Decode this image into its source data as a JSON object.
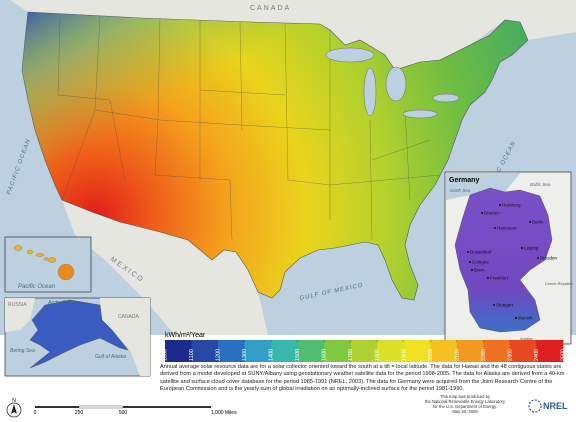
{
  "labels": {
    "pacific": "PACIFIC OCEAN",
    "atlantic": "ATLANTIC OCEAN",
    "gulf": "GULF OF MEXICO",
    "mexico": "MEXICO",
    "canada": "CANADA"
  },
  "hawaii": {
    "ocean": "Pacific Ocean"
  },
  "alaska": {
    "russia": "RUSSIA",
    "arctic": "Arctic Ocean",
    "canada": "CANADA",
    "bering": "Bering Sea",
    "gulf": "Gulf of Alaska"
  },
  "germany": {
    "title": "Germany",
    "north_sea": "North Sea",
    "baltic_sea": "Baltic Sea",
    "czech": "Czech Republic",
    "austria": "Austria",
    "cities": [
      "Hamburg",
      "Bremen",
      "Hannover",
      "Berlin",
      "Dusseldorf",
      "Cologne",
      "Bonn",
      "Leipzig",
      "Dresden",
      "Frankfurt",
      "Stuttgart",
      "Munich"
    ]
  },
  "legend": {
    "unit": "kWh/m²/Year",
    "ticks": [
      1000,
      1100,
      1200,
      1300,
      1400,
      1500,
      1600,
      1700,
      1800,
      1900,
      2000,
      2100,
      2200,
      2300,
      2400,
      2500
    ],
    "colors": [
      "#1c2a8c",
      "#2848a8",
      "#2a70c0",
      "#30a0c8",
      "#38b8a8",
      "#50c070",
      "#80c840",
      "#b0d030",
      "#dce028",
      "#f0e020",
      "#f5c020",
      "#f29a20",
      "#ee7020",
      "#e84820",
      "#e02020"
    ]
  },
  "description": "Annual average solar resource data are for a solar collector oriented toward the south at a tilt = local latitude.  The data for Hawaii and the 48 contiguous states are derived from a model developed at SUNY/Albany using geostationary weather satellite data for the period 1998-2005. The data for Alaska are derived from a 40-km satellite and surface cloud cover database for the period 1985-1991 (NREL, 2003).  The data for Germany were acquired from the Joint Research Centre of the European Commission and is the yearly sum of global irradiation on an optimally-inclined surface for the period 1981-1990.",
  "scale": {
    "marks": [
      "0",
      "250",
      "500",
      "1,000 Miles"
    ],
    "north": "N"
  },
  "credit": {
    "lines": [
      "This map was produced by",
      "the National Renewable Energy Laboratory",
      "for the U.S. Department of Energy.",
      "May 30, 2008"
    ],
    "logo": "NREL"
  }
}
